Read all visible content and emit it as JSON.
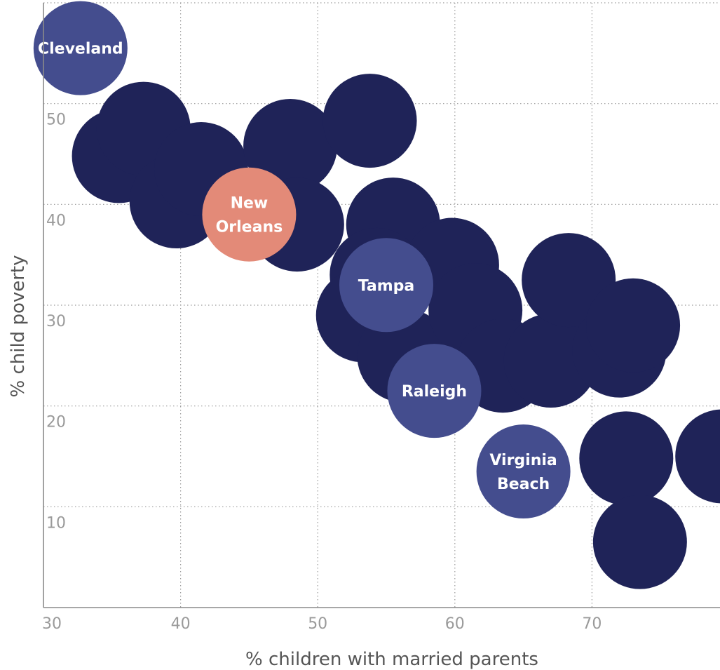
{
  "chart_data": {
    "type": "scatter",
    "title": "",
    "xlabel": "% children with married parents",
    "ylabel": "% child poverty",
    "xlim": [
      30,
      80
    ],
    "ylim": [
      0,
      60
    ],
    "x_ticks": [
      "30",
      "40",
      "50",
      "60",
      "70",
      "80"
    ],
    "y_ticks": [
      "10",
      "20",
      "30",
      "40",
      "50",
      "60"
    ],
    "grid": true,
    "colors": {
      "other": "#1f2358",
      "highlight": "#444d8e",
      "new_orleans": "#e38a78"
    },
    "points": [
      {
        "x": 35.5,
        "y": 44.8,
        "group": "other",
        "label": ""
      },
      {
        "x": 37.3,
        "y": 47.5,
        "group": "other",
        "label": ""
      },
      {
        "x": 39.7,
        "y": 40.3,
        "group": "other",
        "label": ""
      },
      {
        "x": 41.5,
        "y": 43.5,
        "group": "other",
        "label": ""
      },
      {
        "x": 48.0,
        "y": 45.8,
        "group": "other",
        "label": ""
      },
      {
        "x": 48.5,
        "y": 38.0,
        "group": "other",
        "label": ""
      },
      {
        "x": 53.8,
        "y": 48.3,
        "group": "other",
        "label": ""
      },
      {
        "x": 55.5,
        "y": 38.0,
        "group": "other",
        "label": ""
      },
      {
        "x": 59.8,
        "y": 34.0,
        "group": "other",
        "label": ""
      },
      {
        "x": 54.3,
        "y": 33.0,
        "group": "other",
        "label": ""
      },
      {
        "x": 53.3,
        "y": 29.0,
        "group": "other",
        "label": ""
      },
      {
        "x": 56.3,
        "y": 25.0,
        "group": "other",
        "label": ""
      },
      {
        "x": 61.5,
        "y": 29.5,
        "group": "other",
        "label": ""
      },
      {
        "x": 63.5,
        "y": 24.0,
        "group": "other",
        "label": ""
      },
      {
        "x": 67.0,
        "y": 24.5,
        "group": "other",
        "label": ""
      },
      {
        "x": 68.3,
        "y": 32.5,
        "group": "other",
        "label": ""
      },
      {
        "x": 72.0,
        "y": 25.5,
        "group": "other",
        "label": ""
      },
      {
        "x": 73.0,
        "y": 28.0,
        "group": "other",
        "label": ""
      },
      {
        "x": 72.5,
        "y": 14.8,
        "group": "other",
        "label": ""
      },
      {
        "x": 79.5,
        "y": 15.0,
        "group": "other",
        "label": ""
      },
      {
        "x": 73.5,
        "y": 6.5,
        "group": "other",
        "label": ""
      },
      {
        "x": 32.7,
        "y": 55.5,
        "group": "highlight",
        "label": "Cleveland",
        "lines": [
          "Cleveland"
        ]
      },
      {
        "x": 45.0,
        "y": 39.0,
        "group": "new_orleans",
        "label": "New Orleans",
        "lines": [
          "New",
          "Orleans"
        ]
      },
      {
        "x": 55.0,
        "y": 32.0,
        "group": "highlight",
        "label": "Tampa",
        "lines": [
          "Tampa"
        ]
      },
      {
        "x": 58.5,
        "y": 21.5,
        "group": "highlight",
        "label": "Raleigh",
        "lines": [
          "Raleigh"
        ]
      },
      {
        "x": 65.0,
        "y": 13.5,
        "group": "highlight",
        "label": "Virginia Beach",
        "lines": [
          "Virginia",
          "Beach"
        ]
      }
    ]
  }
}
